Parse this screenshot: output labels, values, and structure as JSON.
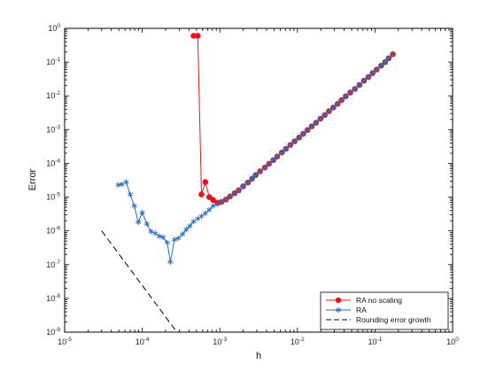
{
  "chart_data": {
    "type": "line",
    "title": "",
    "xlabel": "h",
    "ylabel": "Error",
    "xscale": "log",
    "yscale": "log",
    "xlim": [
      1e-05,
      1
    ],
    "ylim": [
      1e-09,
      1
    ],
    "grid": false,
    "legend_position": "bottom-right",
    "x_ticks": [
      {
        "base": "10",
        "exp": "-5",
        "value": 1e-05
      },
      {
        "base": "10",
        "exp": "-4",
        "value": 0.0001
      },
      {
        "base": "10",
        "exp": "-3",
        "value": 0.001
      },
      {
        "base": "10",
        "exp": "-2",
        "value": 0.01
      },
      {
        "base": "10",
        "exp": "-1",
        "value": 0.1
      },
      {
        "base": "10",
        "exp": "0",
        "value": 1
      }
    ],
    "y_ticks": [
      {
        "base": "10",
        "exp": "0",
        "value": 1
      },
      {
        "base": "10",
        "exp": "-1",
        "value": 0.1
      },
      {
        "base": "10",
        "exp": "-2",
        "value": 0.01
      },
      {
        "base": "10",
        "exp": "-3",
        "value": 0.001
      },
      {
        "base": "10",
        "exp": "-4",
        "value": 0.0001
      },
      {
        "base": "10",
        "exp": "-5",
        "value": 1e-05
      },
      {
        "base": "10",
        "exp": "-6",
        "value": 1e-06
      },
      {
        "base": "10",
        "exp": "-7",
        "value": 1e-07
      },
      {
        "base": "10",
        "exp": "-8",
        "value": 1e-08
      },
      {
        "base": "10",
        "exp": "-9",
        "value": 1e-09
      }
    ],
    "series": [
      {
        "name": "RA no scaling",
        "color": "#e8141b",
        "marker": "circle",
        "line": "solid",
        "x": [
          0.17,
          0.15,
          0.135,
          0.12,
          0.105,
          0.093,
          0.082,
          0.072,
          0.063,
          0.055,
          0.048,
          0.042,
          0.037,
          0.033,
          0.029,
          0.0255,
          0.0225,
          0.0198,
          0.0174,
          0.0153,
          0.0135,
          0.0119,
          0.0105,
          0.0092,
          0.0081,
          0.0071,
          0.0063,
          0.0055,
          0.0049,
          0.0043,
          0.0038,
          0.0033,
          0.0029,
          0.0026,
          0.0023,
          0.002,
          0.00175,
          0.00155,
          0.00135,
          0.0012,
          0.00105,
          0.00093,
          0.00082,
          0.00073,
          0.00065,
          0.00058,
          0.00052,
          0.00046
        ],
        "y": [
          0.17,
          0.13,
          0.1,
          0.078,
          0.06,
          0.047,
          0.036,
          0.028,
          0.021,
          0.016,
          0.0125,
          0.0097,
          0.0075,
          0.0058,
          0.0045,
          0.0035,
          0.0027,
          0.0021,
          0.0016,
          0.00125,
          0.00097,
          0.00075,
          0.00058,
          0.00045,
          0.00035,
          0.00027,
          0.00021,
          0.00016,
          0.000125,
          9.7e-05,
          7.5e-05,
          5.8e-05,
          4.5e-05,
          3.5e-05,
          2.7e-05,
          2.1e-05,
          1.6e-05,
          1.3e-05,
          1.05e-05,
          8.5e-06,
          7.2e-06,
          6.8e-06,
          8.2e-06,
          1e-05,
          2.8e-05,
          1.2e-05,
          0.6,
          0.6
        ]
      },
      {
        "name": "RA",
        "color": "#2c6fb8",
        "marker": "asterisk",
        "line": "solid",
        "x": [
          0.17,
          0.15,
          0.135,
          0.12,
          0.105,
          0.093,
          0.082,
          0.072,
          0.063,
          0.055,
          0.048,
          0.042,
          0.037,
          0.033,
          0.029,
          0.0255,
          0.0225,
          0.0198,
          0.0174,
          0.0153,
          0.0135,
          0.0119,
          0.0105,
          0.0092,
          0.0081,
          0.0071,
          0.0063,
          0.0055,
          0.0049,
          0.0043,
          0.0038,
          0.0033,
          0.0029,
          0.0026,
          0.0023,
          0.002,
          0.00175,
          0.00155,
          0.00135,
          0.0012,
          0.00105,
          0.00093,
          0.00082,
          0.00073,
          0.00065,
          0.00058,
          0.00052,
          0.00046,
          0.00041,
          0.00037,
          0.00033,
          0.00029,
          0.00026,
          0.00023,
          0.00021,
          0.000185,
          0.000165,
          0.000147,
          0.00013,
          0.000115,
          0.0001,
          8.9e-05,
          7.9e-05,
          7e-05,
          6.2e-05,
          5.5e-05,
          4.9e-05
        ],
        "y": [
          0.17,
          0.13,
          0.1,
          0.078,
          0.06,
          0.047,
          0.036,
          0.028,
          0.021,
          0.016,
          0.0125,
          0.0097,
          0.0075,
          0.0058,
          0.0045,
          0.0035,
          0.0027,
          0.0021,
          0.0016,
          0.00125,
          0.00097,
          0.00075,
          0.00058,
          0.00045,
          0.00035,
          0.00027,
          0.00021,
          0.00016,
          0.000125,
          9.7e-05,
          7.5e-05,
          5.8e-05,
          4.5e-05,
          3.5e-05,
          2.7e-05,
          2.1e-05,
          1.6e-05,
          1.3e-05,
          1.05e-05,
          8.5e-06,
          7.2e-06,
          6.2e-06,
          5.5e-06,
          4.2e-06,
          3.3e-06,
          2.7e-06,
          2.3e-06,
          1.9e-06,
          1.4e-06,
          1.1e-06,
          8e-07,
          6e-07,
          5.5e-07,
          1.2e-07,
          4.5e-07,
          6.5e-07,
          7e-07,
          8.5e-07,
          9.5e-07,
          1.6e-06,
          3.5e-06,
          1.8e-06,
          5.5e-06,
          1.2e-05,
          2.8e-05,
          2.4e-05,
          2.3e-05
        ]
      },
      {
        "name": "Rounding error growth",
        "color": "#000000",
        "marker": "none",
        "line": "dashed",
        "x": [
          3e-05,
          0.00028
        ],
        "y": [
          1e-06,
          1e-09
        ]
      }
    ]
  }
}
